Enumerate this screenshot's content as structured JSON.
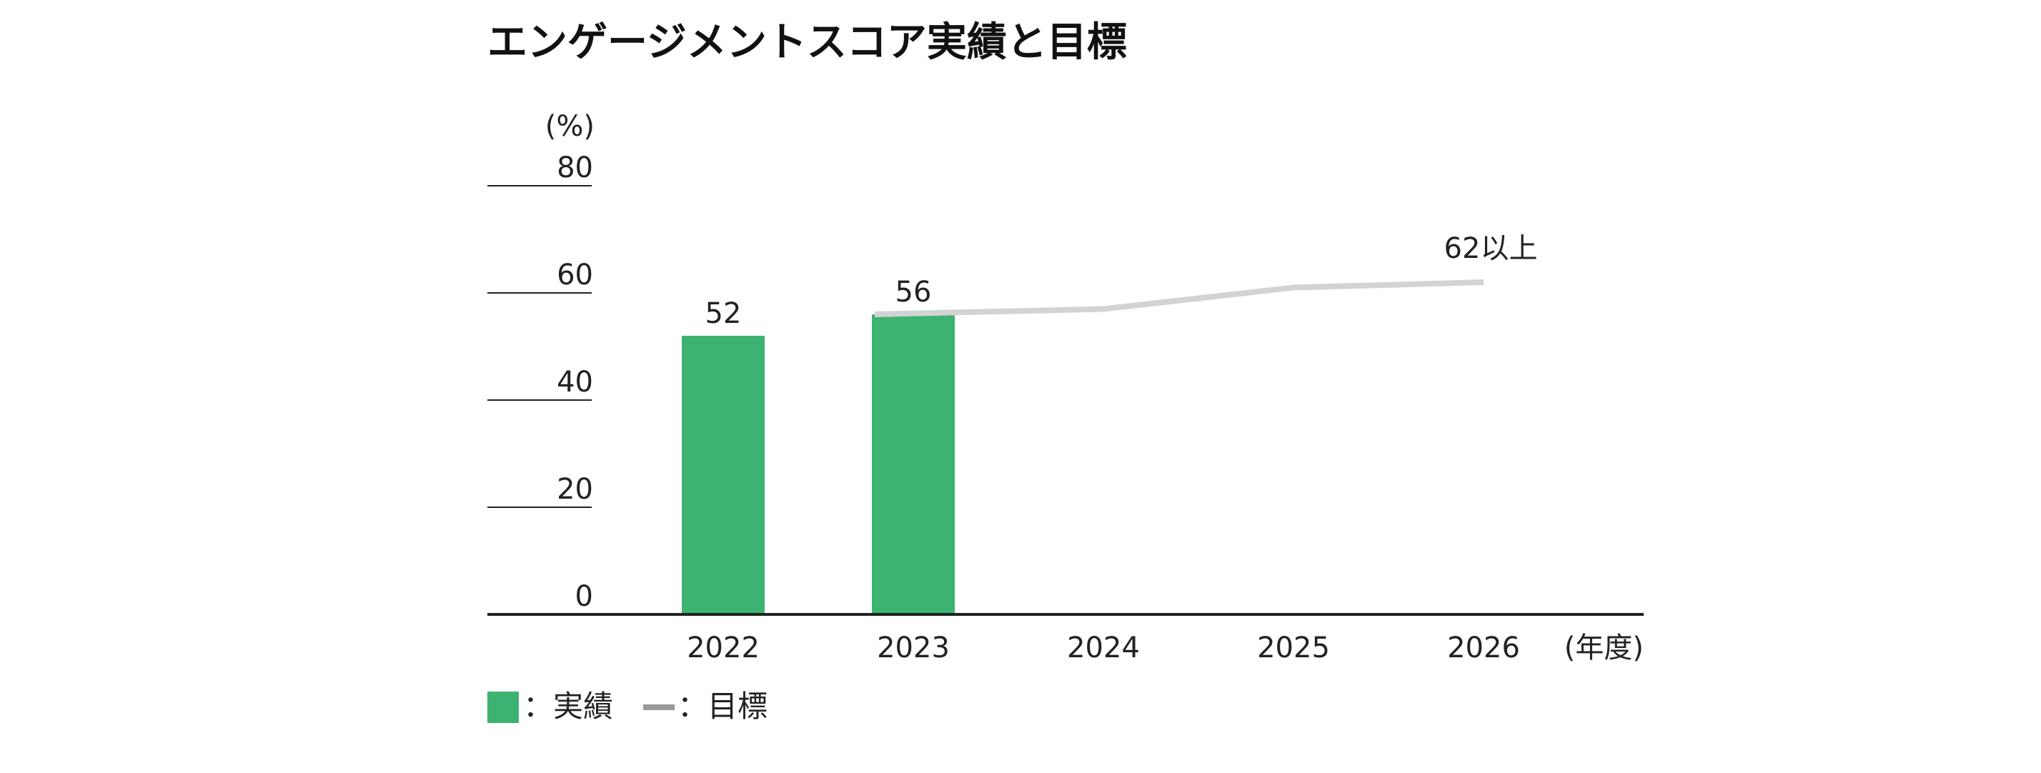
{
  "chart_data": {
    "type": "bar",
    "title": "エンゲージメントスコア実績と目標",
    "y_unit": "(%)",
    "x_unit": "(年度)",
    "ylim": [
      0,
      80
    ],
    "yticks": [
      0,
      20,
      40,
      60,
      80
    ],
    "categories": [
      "2022",
      "2023",
      "2024",
      "2025",
      "2026"
    ],
    "series": [
      {
        "name": "実績",
        "type": "bar",
        "color": "#3cb371",
        "values": [
          52,
          56,
          null,
          null,
          null
        ],
        "labels": [
          "52",
          "56",
          "",
          "",
          ""
        ]
      },
      {
        "name": "目標",
        "type": "line",
        "color": "#d3d3d3",
        "values": [
          null,
          56,
          57,
          61,
          62
        ],
        "end_label": "62以上"
      }
    ],
    "legend": {
      "placement": "bottom-left",
      "items": [
        {
          "symbol": "square",
          "color": "#3cb371",
          "label": "：実績"
        },
        {
          "symbol": "line",
          "color": "#999999",
          "label": "：目標"
        }
      ]
    },
    "grid": false
  }
}
